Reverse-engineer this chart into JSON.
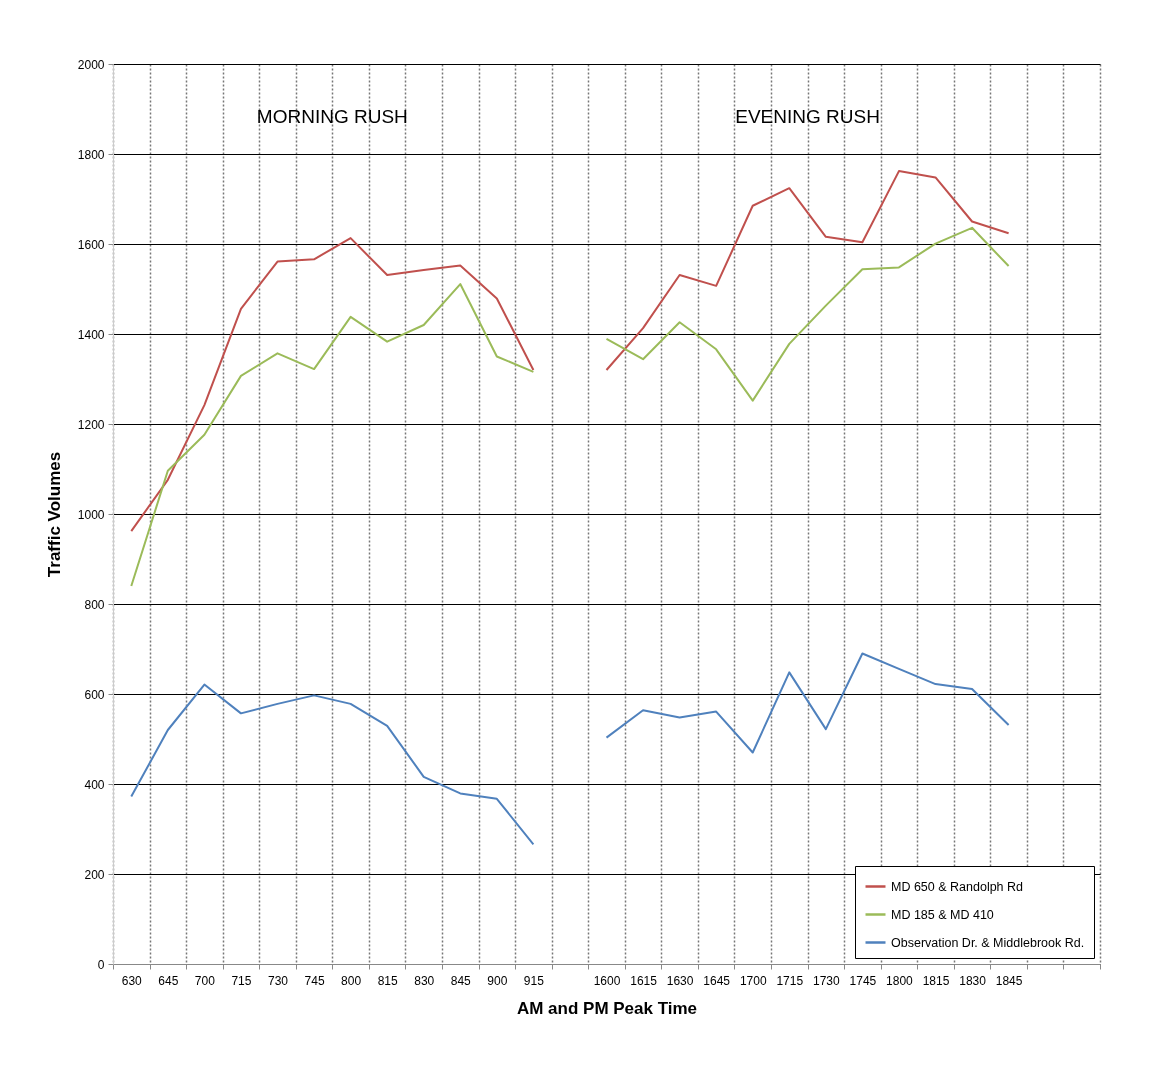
{
  "chart_data": {
    "type": "line",
    "xlabel": "AM and PM Peak Time",
    "ylabel": "Traffic Volumes",
    "annotations": [
      "MORNING RUSH",
      "EVENING RUSH"
    ],
    "categories": [
      "630",
      "645",
      "700",
      "715",
      "730",
      "745",
      "800",
      "815",
      "830",
      "845",
      "900",
      "915",
      null,
      "1600",
      "1615",
      "1630",
      "1645",
      "1700",
      "1715",
      "1730",
      "1745",
      "1800",
      "1815",
      "1830",
      "1845",
      null,
      null
    ],
    "series": [
      {
        "name": "MD 650 & Randolph Rd",
        "color": "#c0504d",
        "values": [
          962,
          1076,
          1242,
          1456,
          1561,
          1566,
          1613,
          1531,
          1542,
          1552,
          1479,
          1320,
          null,
          1320,
          1413,
          1531,
          1507,
          1685,
          1724,
          1616,
          1604,
          1762,
          1748,
          1650,
          1624,
          null,
          null
        ]
      },
      {
        "name": "MD 185 & MD 410",
        "color": "#9bbb59",
        "values": [
          840,
          1096,
          1176,
          1307,
          1357,
          1322,
          1438,
          1383,
          1420,
          1511,
          1350,
          1316,
          null,
          1389,
          1344,
          1426,
          1366,
          1252,
          1378,
          1463,
          1544,
          1548,
          1601,
          1636,
          1551,
          null,
          null
        ]
      },
      {
        "name": "Observation Dr. & Middlebrook Rd.",
        "color": "#4f81bd",
        "values": [
          372,
          520,
          621,
          557,
          578,
          597,
          578,
          529,
          416,
          379,
          367,
          266,
          null,
          503,
          564,
          548,
          561,
          470,
          648,
          522,
          690,
          656,
          622,
          611,
          531,
          null,
          null
        ]
      }
    ],
    "ylim": [
      0,
      2000
    ],
    "yticks": [
      0,
      200,
      400,
      600,
      800,
      1000,
      1200,
      1400,
      1600,
      1800,
      2000
    ],
    "grid": true,
    "legend": "bottom right"
  }
}
